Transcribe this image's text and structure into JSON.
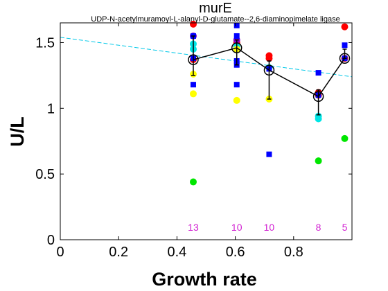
{
  "chart_data": {
    "type": "scatter",
    "title": "murE",
    "subtitle": "UDP-N-acetylmuramoyl-L-alanyl-D-glutamate--2,6-diaminopimelate ligase",
    "xlabel": "Growth rate",
    "ylabel": "U/L",
    "xlim": [
      0,
      1
    ],
    "ylim": [
      0,
      1.65
    ],
    "xticks": [
      0,
      0.2,
      0.4,
      0.6,
      0.8
    ],
    "xtick_labels": [
      "0",
      "0.2",
      "0.4",
      "0.6",
      "0.8"
    ],
    "yticks": [
      0,
      0.5,
      1,
      1.5
    ],
    "ytick_labels": [
      "0",
      "0.5",
      "1",
      "1.5"
    ],
    "grid": false,
    "trend_line": {
      "color": "#00c8e8",
      "style": "dashed",
      "x": [
        0,
        1
      ],
      "y": [
        1.54,
        1.24
      ]
    },
    "mean_series": {
      "color": "#000000",
      "x": [
        0.456,
        0.605,
        0.716,
        0.885,
        0.975
      ],
      "y": [
        1.37,
        1.46,
        1.29,
        1.09,
        1.38
      ],
      "err_low": [
        1.25,
        1.33,
        1.07,
        0.95,
        1.38
      ],
      "err_high": [
        1.55,
        1.52,
        1.36,
        1.14,
        1.45
      ]
    },
    "series": [
      {
        "color": "#ff0000",
        "marker": "circle",
        "x": [
          0.456,
          0.605,
          0.716,
          0.885,
          0.975
        ],
        "y": [
          1.64,
          1.5,
          1.4,
          1.1,
          1.62
        ]
      },
      {
        "color": "#ff0000",
        "marker": "circle",
        "x": [
          0.456,
          0.605,
          0.716,
          0.885,
          0.975
        ],
        "y": [
          1.37,
          1.47,
          1.38,
          1.12,
          1.38
        ]
      },
      {
        "color": "#00e5e5",
        "marker": "circle",
        "x": [
          0.456,
          0.605,
          0.716,
          0.885
        ],
        "y": [
          1.49,
          1.47,
          1.31,
          0.92
        ]
      },
      {
        "color": "#00e5e5",
        "marker": "circle",
        "x": [
          0.456,
          0.885
        ],
        "y": [
          1.45,
          0.94
        ]
      },
      {
        "color": "#ffff00",
        "marker": "circle",
        "x": [
          0.456,
          0.605,
          0.716
        ],
        "y": [
          1.11,
          1.06,
          1.07
        ]
      },
      {
        "color": "#ffff00",
        "marker": "circle",
        "x": [
          0.456,
          0.605
        ],
        "y": [
          1.26,
          1.45
        ]
      },
      {
        "color": "#00e600",
        "marker": "circle",
        "x": [
          0.456,
          0.885,
          0.975
        ],
        "y": [
          0.44,
          0.6,
          0.77
        ]
      },
      {
        "color": "#8800cc",
        "marker": "circle",
        "x": [
          0.456,
          0.605
        ],
        "y": [
          1.55,
          1.52
        ]
      },
      {
        "color": "#0000ff",
        "marker": "square",
        "x": [
          0.456,
          0.456,
          0.456,
          0.605,
          0.605,
          0.605,
          0.605,
          0.605,
          0.716,
          0.716,
          0.885,
          0.885,
          0.975,
          0.975
        ],
        "y": [
          1.55,
          1.38,
          1.18,
          1.63,
          1.55,
          1.36,
          1.33,
          1.18,
          1.3,
          0.65,
          1.27,
          1.1,
          1.48,
          1.38
        ]
      }
    ],
    "counts": [
      {
        "x": 0.456,
        "label": "13"
      },
      {
        "x": 0.605,
        "label": "10"
      },
      {
        "x": 0.716,
        "label": "10"
      },
      {
        "x": 0.885,
        "label": "8"
      },
      {
        "x": 0.975,
        "label": "5"
      }
    ]
  }
}
